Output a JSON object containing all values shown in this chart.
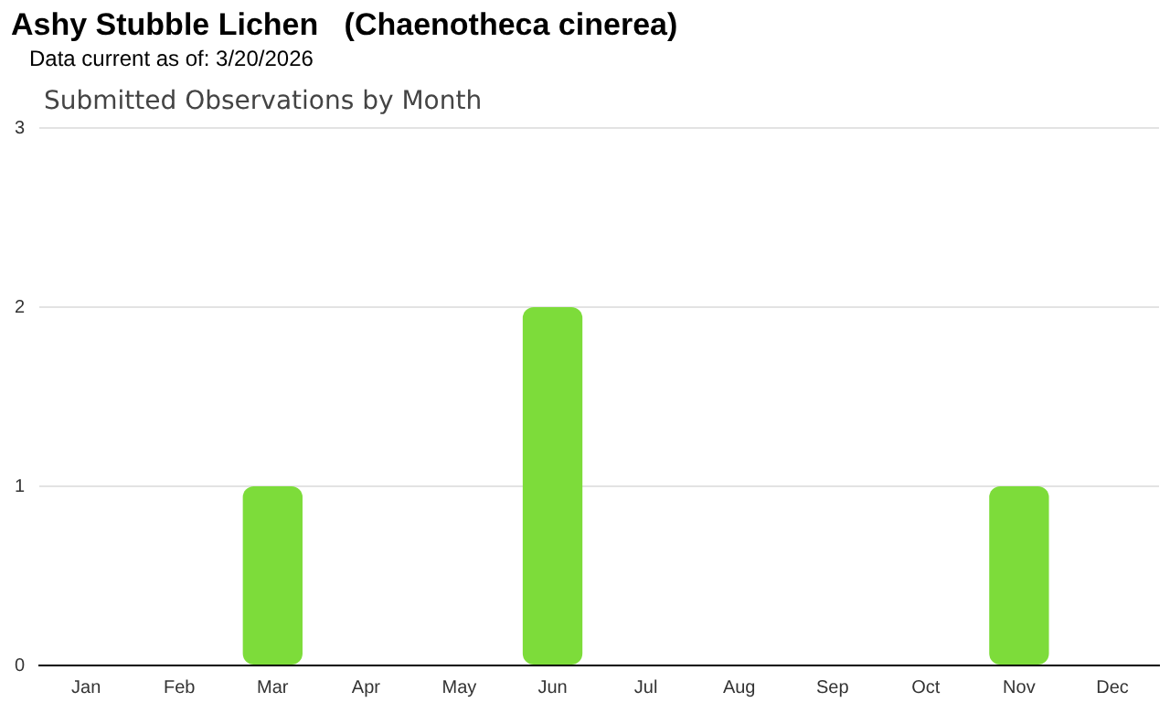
{
  "chart_data": {
    "type": "bar",
    "title": "Ashy Stubble Lichen   (Chaenotheca cinerea)",
    "subtitle": "Data current as of: 3/20/2026",
    "annotations": [
      "Submitted Observations by Month"
    ],
    "categories": [
      "Jan",
      "Feb",
      "Mar",
      "Apr",
      "May",
      "Jun",
      "Jul",
      "Aug",
      "Sep",
      "Oct",
      "Nov",
      "Dec"
    ],
    "values": [
      0,
      0,
      1,
      0,
      0,
      2,
      0,
      0,
      0,
      0,
      1,
      0
    ],
    "color": "#7ddc3a",
    "ylim": [
      0,
      3
    ],
    "yticks": [
      0,
      1,
      2,
      3
    ],
    "grid": "y",
    "legend": false
  }
}
